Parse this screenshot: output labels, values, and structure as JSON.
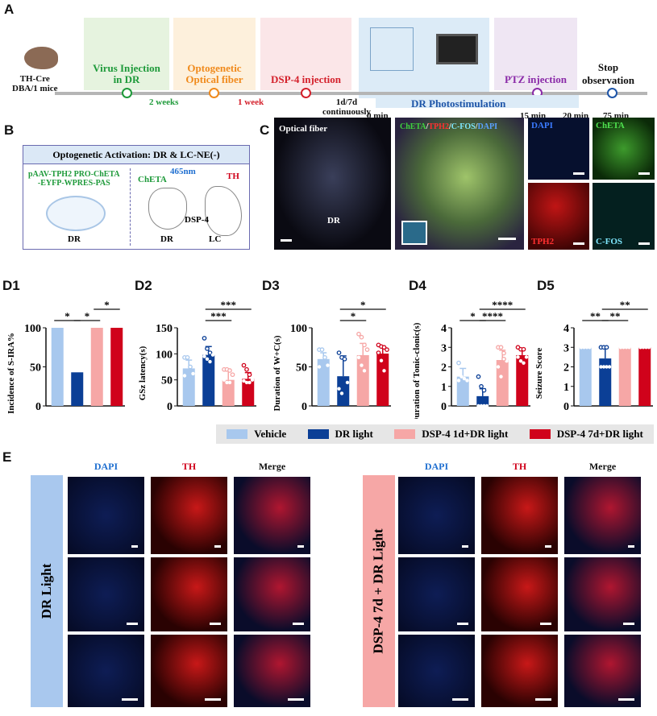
{
  "panels": {
    "A": "A",
    "B": "B",
    "C": "C",
    "D1": "D1",
    "D2": "D2",
    "D3": "D3",
    "D4": "D4",
    "D5": "D5",
    "E": "E"
  },
  "timeline": {
    "mouse_label": "TH-Cre\nDBA/1 mice",
    "stages": [
      {
        "label": "Virus Injection\nin DR",
        "color": "#1e9a3a",
        "bg": "#e6f3df"
      },
      {
        "label": "Optogenetic\nOptical fiber",
        "color": "#f08a1c",
        "bg": "#fdf0dc"
      },
      {
        "label": "DSP-4 injection",
        "color": "#d4202b",
        "bg": "#fbe6e8"
      },
      {
        "label": "",
        "color": "#1e55a8",
        "bg": "#dcebf7"
      },
      {
        "label": "PTZ injection",
        "color": "#8a2aa8",
        "bg": "#efe6f3"
      }
    ],
    "stop_label": "Stop\nobservation",
    "intervals": [
      "2 weeks",
      "1 week",
      "1d/7d\ncontinuously"
    ],
    "photostim_label": "DR Photostimulation",
    "times": [
      "0 min",
      "15 min",
      "20 min",
      "75 min"
    ]
  },
  "panelB": {
    "title": "Optogenetic Activation: DR & LC-NE(-)",
    "virus": "pAAV-TPH2 PRO-ChETA\n-EYFP-WPRES-PAS",
    "chETA": "ChETA",
    "wavelength": "465nm",
    "th": "TH",
    "dsp4": "DSP-4",
    "dr1": "DR",
    "dr2": "DR",
    "lc": "LC"
  },
  "panelC": {
    "optical_fiber": "Optical fiber",
    "dr": "DR",
    "merge_label": [
      "ChETA",
      "/",
      "TPH2",
      "/",
      "C-FOS",
      "/",
      "DAPI"
    ],
    "small": [
      "DAPI",
      "ChETA",
      "TPH2",
      "C-FOS"
    ]
  },
  "legend": [
    {
      "label": "Vehicle",
      "color": "#a8c8ee"
    },
    {
      "label": "DR light",
      "color": "#0b3f96"
    },
    {
      "label": "DSP-4 1d+DR light",
      "color": "#f6a7a6"
    },
    {
      "label": "DSP-4 7d+DR light",
      "color": "#d0021b"
    }
  ],
  "chart_data": [
    {
      "type": "bar",
      "ylabel": "Incidence of S-IRA%",
      "ylim": [
        0,
        100
      ],
      "yticks": [
        0,
        50,
        100
      ],
      "values": [
        100,
        43,
        100,
        100
      ],
      "sig": [
        {
          "from": 0,
          "to": 1,
          "label": "*",
          "level": 0
        },
        {
          "from": 1,
          "to": 2,
          "label": "*",
          "level": 0
        },
        {
          "from": 2,
          "to": 3,
          "label": "*",
          "level": 1
        }
      ]
    },
    {
      "type": "bar",
      "ylabel": "GSz latency(s)",
      "ylim": [
        0,
        150
      ],
      "yticks": [
        0,
        50,
        100,
        150
      ],
      "values": [
        72,
        98,
        50,
        52
      ],
      "sd": [
        16,
        16,
        17,
        12
      ],
      "points": [
        [
          93,
          93,
          75,
          62,
          58
        ],
        [
          130,
          110,
          102,
          98,
          95,
          90,
          85
        ],
        [
          70,
          70,
          68,
          60,
          50,
          45,
          45
        ],
        [
          78,
          70,
          60,
          50,
          48,
          45,
          45
        ]
      ],
      "sig": [
        {
          "from": 1,
          "to": 2,
          "label": "***",
          "level": 0
        },
        {
          "from": 1,
          "to": 3,
          "label": "***",
          "level": 1
        }
      ]
    },
    {
      "type": "bar",
      "ylabel": "Duration of W+C(s)",
      "ylim": [
        0,
        100
      ],
      "yticks": [
        0,
        50,
        100
      ],
      "values": [
        60,
        38,
        65,
        67
      ],
      "sd": [
        8,
        26,
        15,
        9
      ],
      "points": [
        [
          72,
          72,
          62,
          52,
          50
        ],
        [
          68,
          62,
          60,
          30,
          22,
          16
        ],
        [
          92,
          88,
          78,
          72,
          62,
          52,
          45
        ],
        [
          78,
          76,
          75,
          72,
          68,
          58,
          45
        ]
      ],
      "sig": [
        {
          "from": 1,
          "to": 2,
          "label": "*",
          "level": 0
        },
        {
          "from": 1,
          "to": 3,
          "label": "*",
          "level": 1
        }
      ]
    },
    {
      "type": "bar",
      "ylabel": "Duration of Tonic-clonic(s)",
      "ylim": [
        0,
        4
      ],
      "yticks": [
        0,
        1,
        2,
        3,
        4
      ],
      "values": [
        1.5,
        0.5,
        2.35,
        2.6
      ],
      "sd": [
        0.42,
        0.38,
        0.5,
        0.3
      ],
      "points": [
        [
          2.2,
          1.5,
          1.4,
          1.3,
          1.3
        ],
        [
          1.5,
          1.0,
          0.8,
          0,
          0,
          0,
          0
        ],
        [
          3.0,
          3.0,
          2.7,
          2.3,
          2.0,
          1.5,
          2.4
        ],
        [
          3.0,
          2.9,
          2.9,
          2.5,
          2.5,
          2.3,
          2.2
        ]
      ],
      "sig": [
        {
          "from": 0,
          "to": 1,
          "label": "*",
          "level": 0
        },
        {
          "from": 1,
          "to": 2,
          "label": "****",
          "level": 0
        },
        {
          "from": 1,
          "to": 3,
          "label": "****",
          "level": 1
        }
      ]
    },
    {
      "type": "bar",
      "ylabel": "Seizure Score",
      "ylim": [
        0,
        4
      ],
      "yticks": [
        0,
        1,
        2,
        3,
        4
      ],
      "values": [
        3,
        2.43,
        3,
        3
      ],
      "sd": [
        0,
        0.53,
        0,
        0
      ],
      "points": [
        [
          3,
          3,
          3,
          3,
          3
        ],
        [
          3,
          3,
          3,
          2,
          2,
          2,
          2
        ],
        [
          3,
          3,
          3,
          3,
          3
        ],
        [
          3,
          3,
          3,
          3,
          3
        ]
      ],
      "sig": [
        {
          "from": 0,
          "to": 1,
          "label": "**",
          "level": 0
        },
        {
          "from": 1,
          "to": 2,
          "label": "**",
          "level": 0
        },
        {
          "from": 1,
          "to": 3,
          "label": "**",
          "level": 1
        }
      ]
    }
  ],
  "panelE": {
    "headers": [
      "DAPI",
      "TH",
      "Merge"
    ],
    "left_group": "DR Light",
    "right_group": "DSP-4 7d + DR Light",
    "header_colors": {
      "DAPI": "#1f6fd0",
      "TH": "#d0021b",
      "Merge": "#111111"
    }
  }
}
